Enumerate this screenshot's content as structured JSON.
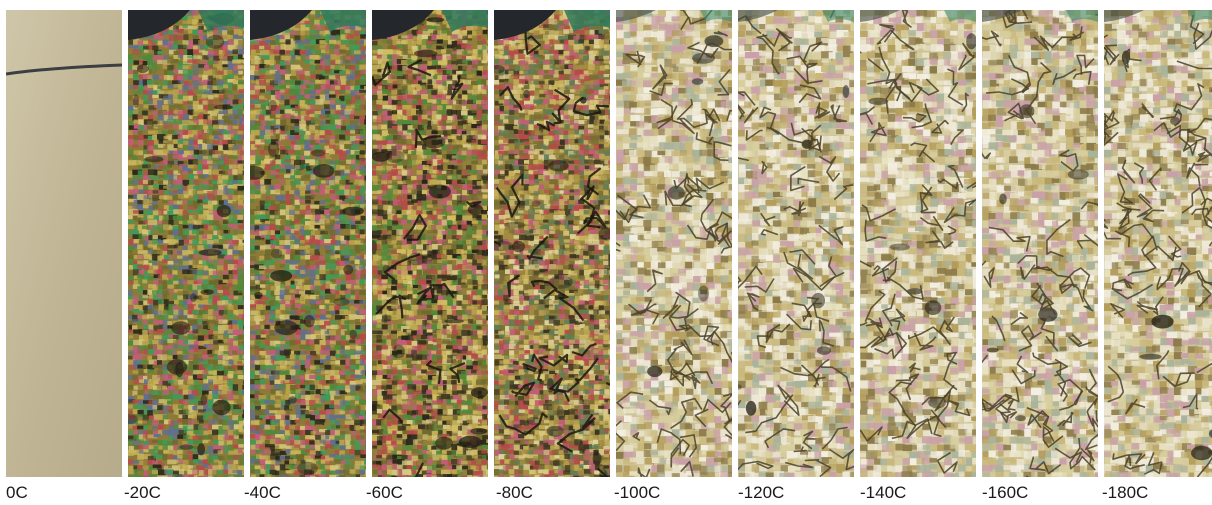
{
  "figure": {
    "panels": [
      {
        "label": "0C",
        "texture": "smooth-uncracked"
      },
      {
        "label": "-20C",
        "texture": "birefringent-speckle"
      },
      {
        "label": "-40C",
        "texture": "birefringent-speckle"
      },
      {
        "label": "-60C",
        "texture": "cracking-onset"
      },
      {
        "label": "-80C",
        "texture": "cracked-network"
      },
      {
        "label": "-100C",
        "texture": "dense-crack-network"
      },
      {
        "label": "-120C",
        "texture": "dense-crack-network"
      },
      {
        "label": "-140C",
        "texture": "dense-crack-network"
      },
      {
        "label": "-160C",
        "texture": "dense-crack-network"
      },
      {
        "label": "-180C",
        "texture": "dense-crack-network"
      }
    ]
  }
}
